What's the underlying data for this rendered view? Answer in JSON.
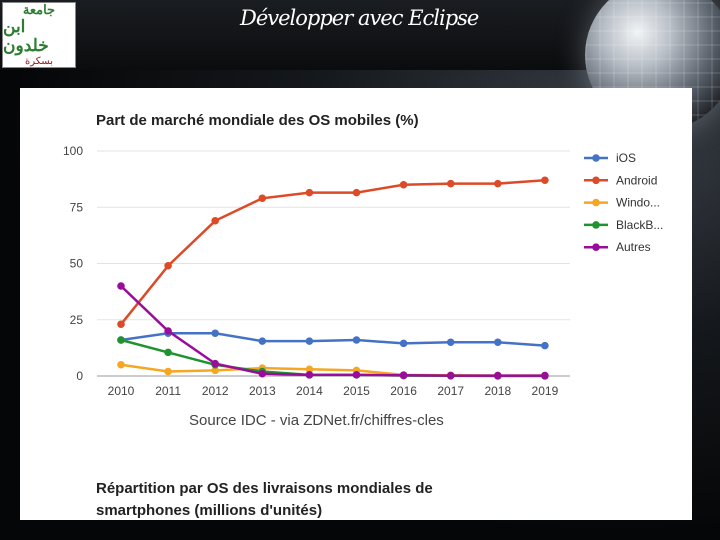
{
  "header": {
    "title": "Développer avec Eclipse",
    "logo_line1": "جامعة",
    "logo_line2": "ابن خلدون",
    "logo_line3": "بسكرة"
  },
  "chart_data": {
    "type": "line",
    "title": "Part de marché mondiale des OS mobiles (%)",
    "source": "Source IDC - via ZDNet.fr/chiffres-cles",
    "x": [
      "2010",
      "2011",
      "2012",
      "2013",
      "2014",
      "2015",
      "2016",
      "2017",
      "2018",
      "2019"
    ],
    "y_ticks": [
      "0",
      "25",
      "50",
      "75",
      "100"
    ],
    "ylim": [
      0,
      100
    ],
    "legend_position": "right",
    "series": [
      {
        "name": "iOS",
        "color": "#4472c4",
        "values": [
          16,
          19,
          19,
          15.5,
          15.5,
          16,
          14.5,
          15,
          15,
          13.5
        ]
      },
      {
        "name": "Android",
        "color": "#dc4a27",
        "values": [
          23,
          49,
          69,
          79,
          81.5,
          81.5,
          85,
          85.5,
          85.5,
          87
        ]
      },
      {
        "name": "Windo...",
        "color": "#f5a623",
        "values": [
          5,
          2,
          2.5,
          3.5,
          3,
          2.5,
          0.5,
          0.3,
          0.2,
          0.2
        ]
      },
      {
        "name": "BlackB...",
        "color": "#209330",
        "values": [
          16,
          10.5,
          5,
          2,
          0.5,
          0.5,
          0.2,
          0.1,
          0,
          0
        ]
      },
      {
        "name": "Autres",
        "color": "#990d9a",
        "values": [
          40,
          20,
          5.5,
          1,
          0.5,
          0.5,
          0.3,
          0.2,
          0.2,
          0.2
        ]
      }
    ]
  },
  "section": {
    "line1": "Répartition par OS des livraisons mondiales de",
    "line2": "smartphones (millions d'unités)"
  }
}
